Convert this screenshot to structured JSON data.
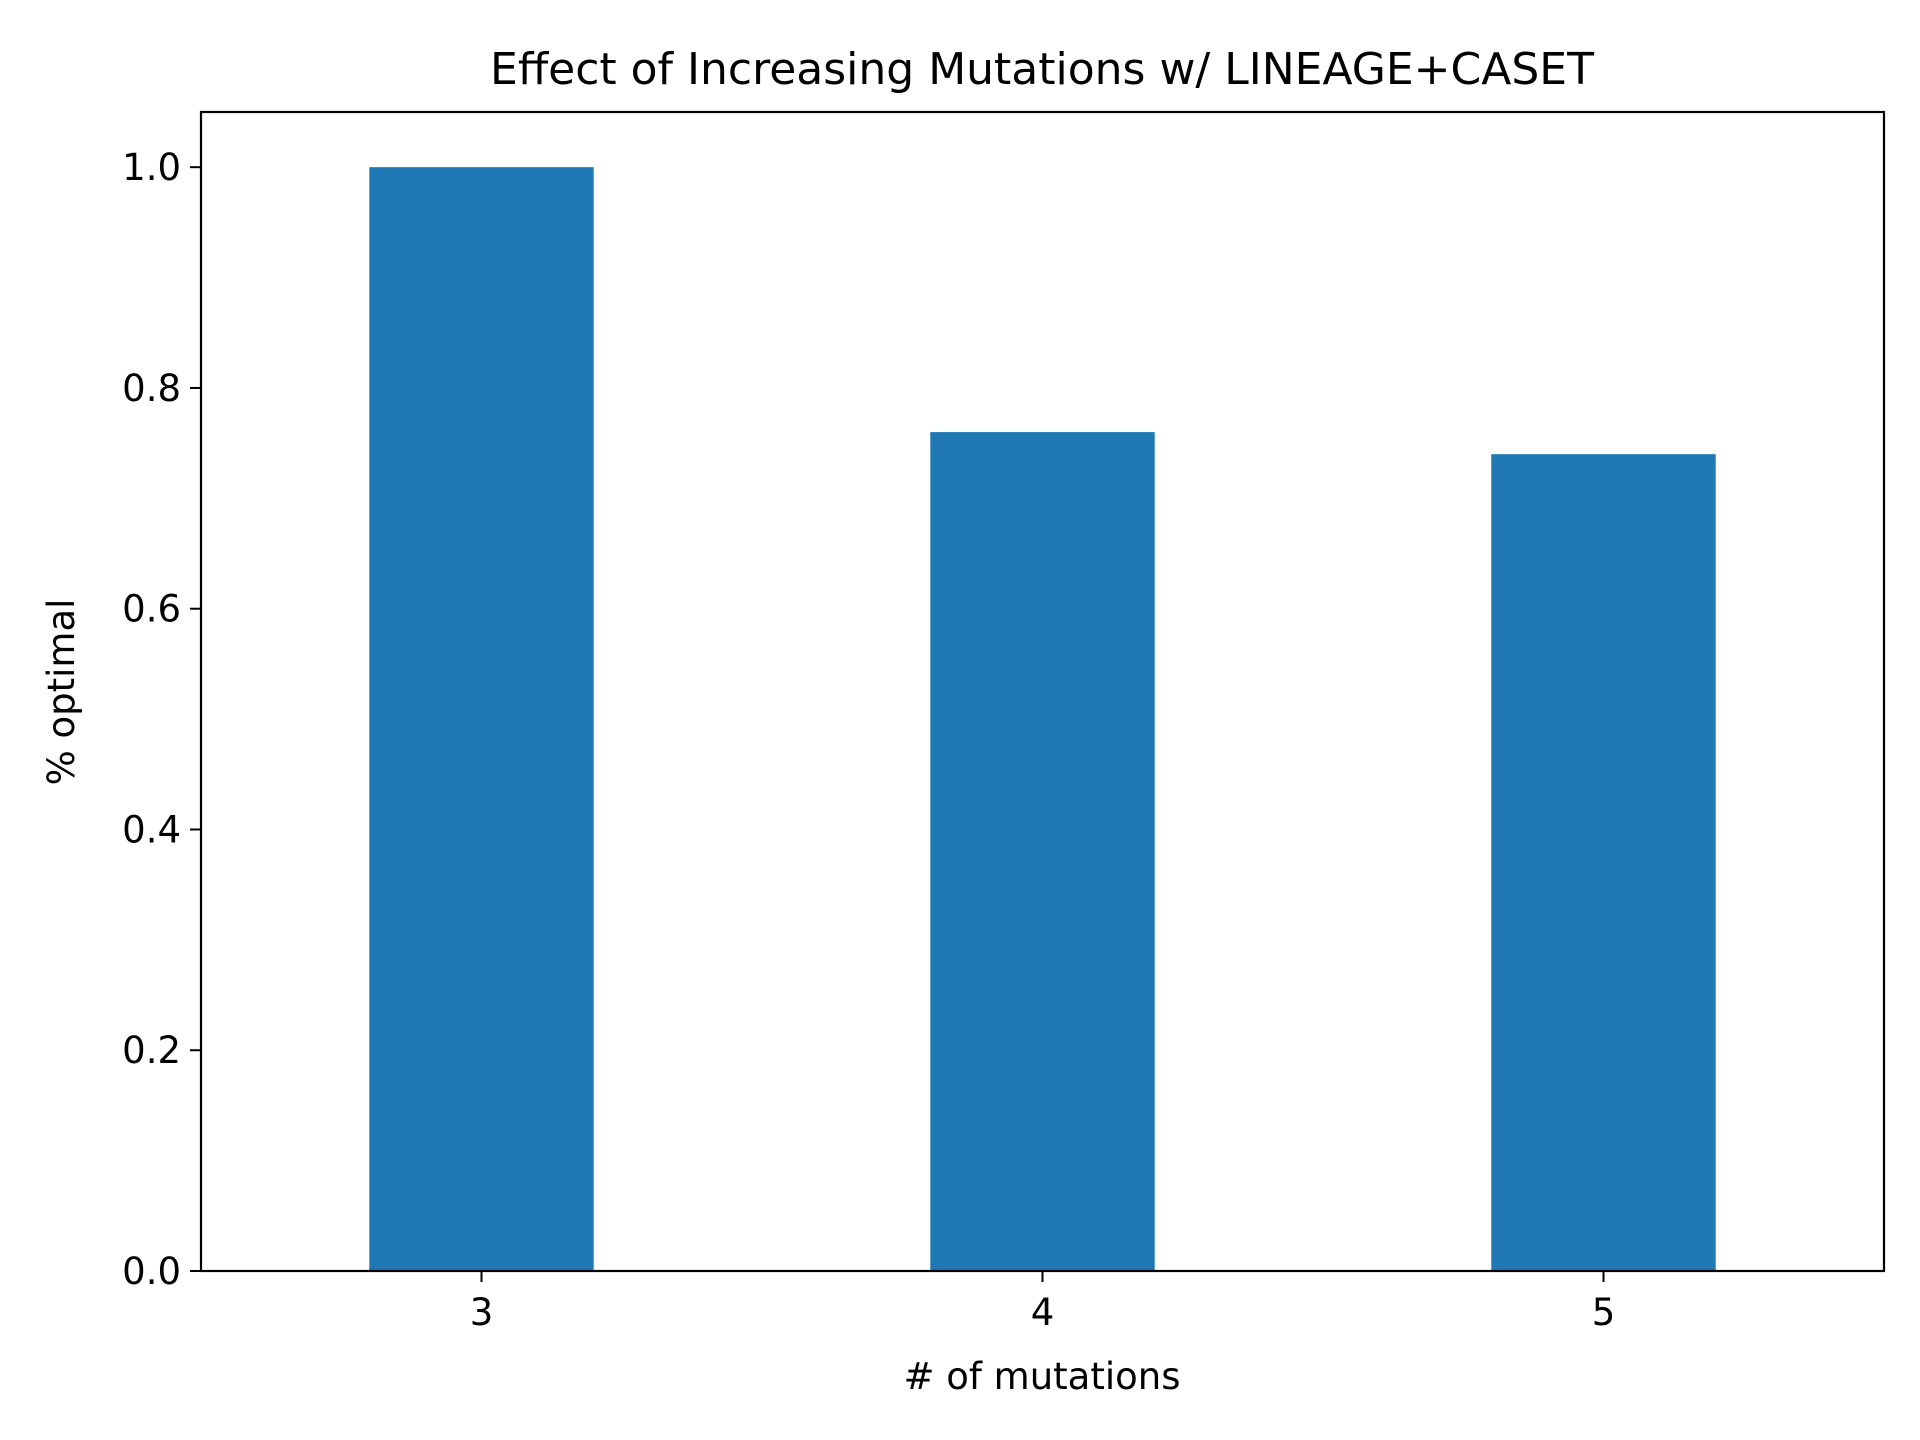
{
  "chart_data": {
    "type": "bar",
    "title": "Effect of Increasing Mutations w/ LINEAGE+CASET",
    "xlabel": "# of mutations",
    "ylabel": "% optimal",
    "categories": [
      "3",
      "4",
      "5"
    ],
    "values": [
      1.0,
      0.76,
      0.74
    ],
    "ylim": [
      0,
      1.05
    ],
    "yticks": [
      0.0,
      0.2,
      0.4,
      0.6,
      0.8,
      1.0
    ],
    "ytick_labels": [
      "0.0",
      "0.2",
      "0.4",
      "0.6",
      "0.8",
      "1.0"
    ],
    "grid": false,
    "legend": "none",
    "bar_color": "#1f77b4"
  }
}
